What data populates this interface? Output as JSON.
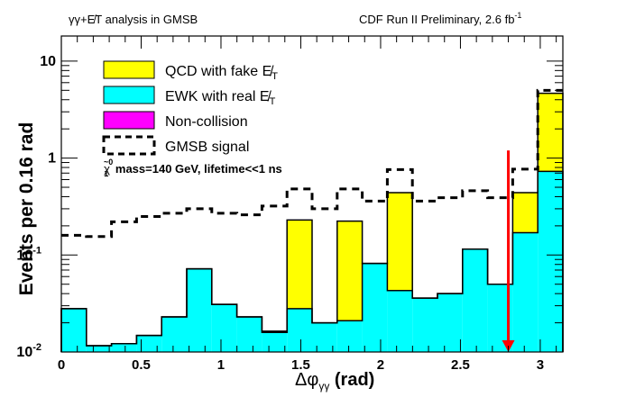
{
  "header": {
    "left_title": "γγ+E̸T analysis in GMSB",
    "right_title": "CDF Run II Preliminary, 2.6 fb",
    "right_title_sup": "-1"
  },
  "chart_data": {
    "type": "bar",
    "stacked": true,
    "title_left": "γγ+E̸T analysis in GMSB",
    "title_right": "CDF Run II Preliminary, 2.6 fb^-1",
    "xlabel": "Δφγγ (rad)",
    "xlabel_main": "Δφ",
    "xlabel_sub": "γγ",
    "xlabel_unit": " (rad)",
    "ylabel": "Events per 0.16 rad",
    "yscale": "log",
    "xlim": [
      0,
      3.1416
    ],
    "ylim": [
      0.01,
      15
    ],
    "n_bins": 20,
    "x_ticks": [
      0,
      0.5,
      1,
      1.5,
      2,
      2.5,
      3
    ],
    "x_tick_labels": [
      "0",
      "0.5",
      "1",
      "1.5",
      "2",
      "2.5",
      "3"
    ],
    "y_ticks": [
      0.01,
      0.1,
      1,
      10
    ],
    "y_tick_labels": [
      {
        "base": "10",
        "exp": "-2"
      },
      {
        "base": "10",
        "exp": "-1"
      },
      {
        "base": "1",
        "exp": ""
      },
      {
        "base": "10",
        "exp": ""
      }
    ],
    "series": [
      {
        "name": "EWK with real E̸T",
        "color": "#00ffff",
        "values": [
          0.028,
          0.0116,
          0.0122,
          0.0148,
          0.023,
          0.072,
          0.031,
          0.023,
          0.0159,
          0.028,
          0.02,
          0.021,
          0.082,
          0.043,
          0.036,
          0.04,
          0.115,
          0.05,
          0.17,
          0.73
        ]
      },
      {
        "name": "QCD with fake E̸T",
        "color": "#ffff00",
        "values": [
          0,
          0,
          0,
          0,
          0,
          0,
          0,
          0,
          0.0005,
          0.202,
          0,
          0.203,
          0,
          0.397,
          0,
          0,
          0,
          0,
          0.27,
          3.93
        ]
      },
      {
        "name": "Non-collision",
        "color": "#ff00ff",
        "values": [
          0,
          0,
          0,
          0,
          0,
          0,
          0,
          0,
          0,
          0,
          0,
          0,
          0,
          0,
          0,
          0,
          0,
          0,
          0,
          0
        ]
      },
      {
        "name": "GMSB signal",
        "style": "dashed",
        "color": "#000000",
        "values": [
          0.16,
          0.155,
          0.22,
          0.25,
          0.27,
          0.3,
          0.27,
          0.26,
          0.32,
          0.48,
          0.3,
          0.48,
          0.36,
          0.76,
          0.36,
          0.39,
          0.46,
          0.39,
          0.77,
          5.0
        ]
      }
    ],
    "legend": {
      "placement": "top-left",
      "entries": [
        {
          "label": "QCD with fake E̸",
          "sub": "T",
          "color": "#ffff00",
          "style": "fill"
        },
        {
          "label": "EWK with real E̸",
          "sub": "T",
          "color": "#00ffff",
          "style": "fill"
        },
        {
          "label": "Non-collision",
          "sub": "",
          "color": "#ff00ff",
          "style": "fill"
        },
        {
          "label": "GMSB signal",
          "sub": "",
          "color": "#000000",
          "style": "dashed"
        }
      ],
      "note_symbol": "χ̃",
      "note_sup": "0",
      "note_sub": "1",
      "note_text": "mass=140 GeV, lifetime<<1 ns"
    },
    "annotations": [
      {
        "type": "arrow",
        "direction": "down",
        "x": 2.8,
        "y_from": 1.2,
        "y_to": 0.01,
        "color": "#ff0000"
      }
    ]
  }
}
